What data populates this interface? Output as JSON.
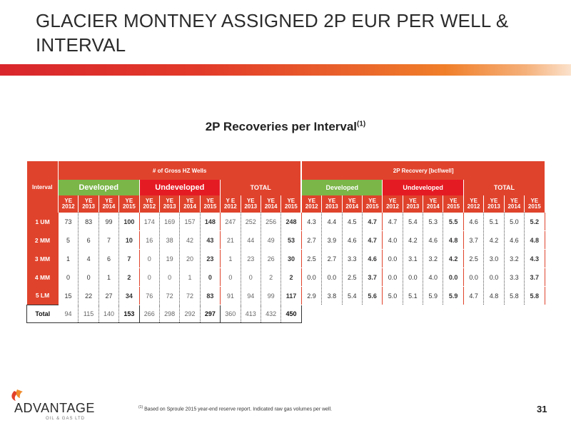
{
  "slide": {
    "title_line1": "GLACIER MONTNEY ASSIGNED 2P EUR PER WELL &",
    "title_line2": "INTERVAL",
    "section_title": "2P Recoveries per Interval",
    "section_superscript": "(1)",
    "page_number": "31"
  },
  "colors": {
    "accent": "#e0432c",
    "developed": "#7ab648",
    "undeveloped": "#e51b24"
  },
  "table": {
    "interval_header": "Interval",
    "group_wells": "# of Gross HZ Wells",
    "group_recovery": "2P Recovery [bcf/well]",
    "sub_headers": [
      "Developed",
      "Undeveloped",
      "TOTAL",
      "Developed",
      "Undeveloped",
      "TOTAL"
    ],
    "years": [
      [
        "YE",
        "2012"
      ],
      [
        "YE",
        "2013"
      ],
      [
        "YE",
        "2014"
      ],
      [
        "YE",
        "2015"
      ],
      [
        "YE",
        "2012"
      ],
      [
        "YE",
        "2013"
      ],
      [
        "YE",
        "2014"
      ],
      [
        "YE",
        "2015"
      ],
      [
        "Y E",
        "2012"
      ],
      [
        "YE",
        "2013"
      ],
      [
        "YE",
        "2014"
      ],
      [
        "YE",
        "2015"
      ],
      [
        "YE",
        "2012"
      ],
      [
        "YE",
        "2013"
      ],
      [
        "YE",
        "2014"
      ],
      [
        "YE",
        "2015"
      ],
      [
        "YE",
        "2012"
      ],
      [
        "YE",
        "2013"
      ],
      [
        "YE",
        "2014"
      ],
      [
        "YE",
        "2015"
      ],
      [
        "YE",
        "2012"
      ],
      [
        "YE",
        "2013"
      ],
      [
        "YE",
        "2014"
      ],
      [
        "YE",
        "2015"
      ]
    ],
    "rows": [
      {
        "label": "1 UM",
        "values": [
          "73",
          "83",
          "99",
          "100",
          "174",
          "169",
          "157",
          "148",
          "247",
          "252",
          "256",
          "248",
          "4.3",
          "4.4",
          "4.5",
          "4.7",
          "4.7",
          "5.4",
          "5.3",
          "5.5",
          "4.6",
          "5.1",
          "5.0",
          "5.2"
        ]
      },
      {
        "label": "2 MM",
        "values": [
          "5",
          "6",
          "7",
          "10",
          "16",
          "38",
          "42",
          "43",
          "21",
          "44",
          "49",
          "53",
          "2.7",
          "3.9",
          "4.6",
          "4.7",
          "4.0",
          "4.2",
          "4.6",
          "4.8",
          "3.7",
          "4.2",
          "4.6",
          "4.8"
        ]
      },
      {
        "label": "3 MM",
        "values": [
          "1",
          "4",
          "6",
          "7",
          "0",
          "19",
          "20",
          "23",
          "1",
          "23",
          "26",
          "30",
          "2.5",
          "2.7",
          "3.3",
          "4.6",
          "0.0",
          "3.1",
          "3.2",
          "4.2",
          "2.5",
          "3.0",
          "3.2",
          "4.3"
        ]
      },
      {
        "label": "4 MM",
        "values": [
          "0",
          "0",
          "1",
          "2",
          "0",
          "0",
          "1",
          "0",
          "0",
          "0",
          "2",
          "2",
          "0.0",
          "0.0",
          "2.5",
          "3.7",
          "0.0",
          "0.0",
          "4.0",
          "0.0",
          "0.0",
          "0.0",
          "3.3",
          "3.7"
        ]
      },
      {
        "label": "5 LM",
        "values": [
          "15",
          "22",
          "27",
          "34",
          "76",
          "72",
          "72",
          "83",
          "91",
          "94",
          "99",
          "117",
          "2.9",
          "3.8",
          "5.4",
          "5.6",
          "5.0",
          "5.1",
          "5.9",
          "5.9",
          "4.7",
          "4.8",
          "5.8",
          "5.8"
        ]
      }
    ],
    "total": {
      "label": "Total",
      "values": [
        "94",
        "115",
        "140",
        "153",
        "266",
        "298",
        "292",
        "297",
        "360",
        "413",
        "432",
        "450"
      ]
    }
  },
  "footer": {
    "logo_text": "ADVANTAGE",
    "logo_sub": "OIL & GAS LTD",
    "footnote_mark": "(1)",
    "footnote_text": " Based on Sproule 2015 year-end reserve report. Indicated raw gas volumes per well."
  }
}
